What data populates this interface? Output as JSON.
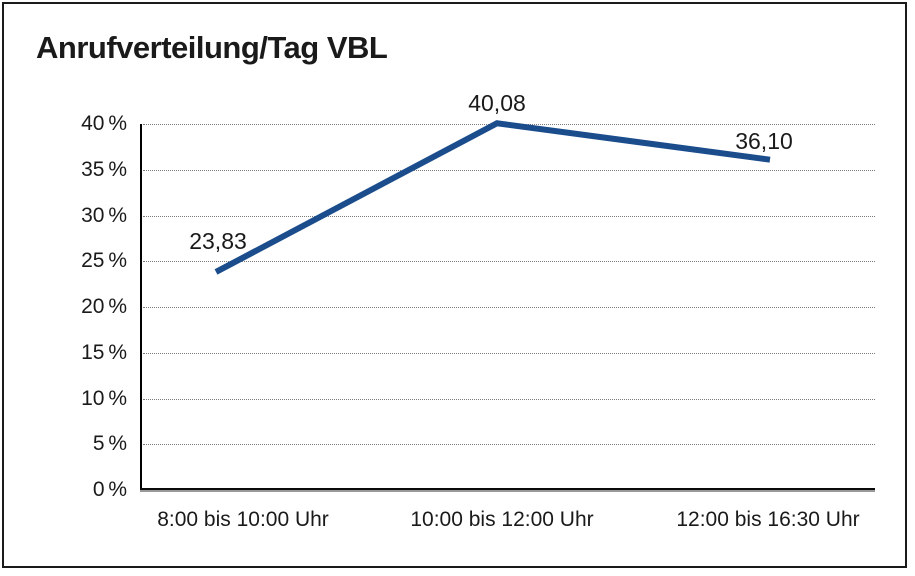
{
  "chart_data": {
    "type": "line",
    "title": "Anrufverteilung/Tag VBL",
    "categories": [
      "8:00 bis 10:00 Uhr",
      "10:00 bis 12:00 Uhr",
      "12:00 bis 16:30 Uhr"
    ],
    "values": [
      23.83,
      40.08,
      36.1
    ],
    "point_labels": [
      "23,83",
      "40,08",
      "36,10"
    ],
    "y_tick_values": [
      0,
      5,
      10,
      15,
      20,
      25,
      30,
      35,
      40
    ],
    "y_ticks": [
      "0 %",
      "5 %",
      "10 %",
      "15 %",
      "20 %",
      "25 %",
      "30 %",
      "35 %",
      "40 %"
    ],
    "ylim": [
      0,
      40
    ],
    "xlabel": "",
    "ylabel": "",
    "legend": "none",
    "grid": "horizontal-dotted"
  },
  "colors": {
    "line": "#1b4d8d",
    "grid": "#7a7a7a",
    "axis": "#000000",
    "axis_shadow": "#999999",
    "text": "#1a1a1a",
    "frame_border": "#1a1a1a",
    "background": "#ffffff"
  }
}
